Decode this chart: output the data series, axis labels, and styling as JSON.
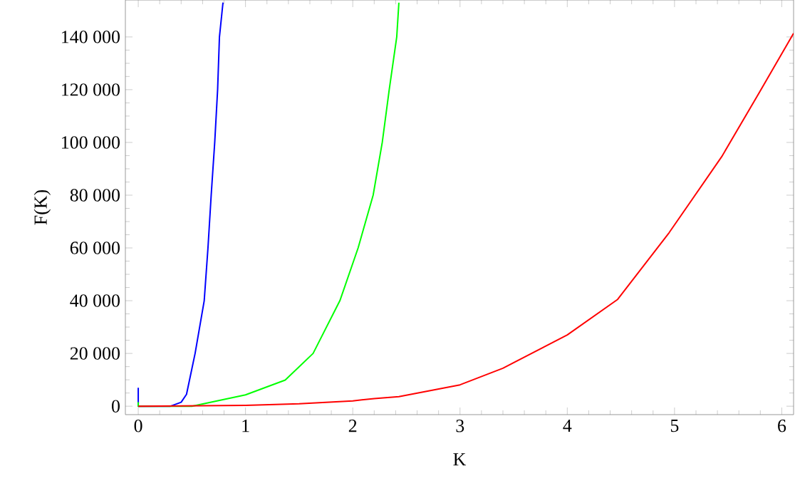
{
  "chart_data": {
    "type": "line",
    "xlabel": "K",
    "ylabel": "F(K)",
    "xlim": [
      -0.12,
      6.11
    ],
    "ylim": [
      -3200,
      154000
    ],
    "xticks": [
      0,
      1,
      2,
      3,
      4,
      5,
      6
    ],
    "yticks": [
      0,
      {
        "value": 20000,
        "label": "20 000"
      },
      {
        "value": 40000,
        "label": "40 000"
      },
      {
        "value": 60000,
        "label": "60 000"
      },
      {
        "value": 80000,
        "label": "80 000"
      },
      {
        "value": 100000,
        "label": "100 000"
      },
      {
        "value": 120000,
        "label": "120 000"
      },
      {
        "value": 140000,
        "label": "140 000"
      }
    ],
    "marker": "none",
    "line_style": "solid",
    "series": [
      {
        "color": "#0000ff",
        "x": [
          0,
          0,
          0.3,
          0.4,
          0.45,
          0.53,
          0.615,
          0.65,
          0.68,
          0.713,
          0.74,
          0.757,
          0.79
        ],
        "values": [
          7000,
          0,
          0,
          1500,
          4500,
          20000,
          40000,
          60000,
          80000,
          100000,
          120000,
          140000,
          153000
        ]
      },
      {
        "color": "#00ff00",
        "x": [
          0,
          0,
          0.5,
          1,
          1.37,
          1.63,
          1.88,
          2.05,
          2.19,
          2.275,
          2.34,
          2.41,
          2.43
        ],
        "values": [
          1500,
          0,
          0,
          4300,
          9900,
          20000,
          40000,
          60000,
          80000,
          100000,
          120000,
          140000,
          153000
        ]
      },
      {
        "color": "#ff0000",
        "x": [
          0,
          1,
          1.5,
          2,
          2.2,
          2.43,
          3.0,
          3.4,
          4.0,
          4.47,
          4.95,
          5.44,
          5.79,
          6.11
        ],
        "values": [
          0,
          300,
          900,
          2000,
          2900,
          3600,
          8100,
          14400,
          27000,
          40500,
          65800,
          94600,
          118900,
          141400
        ]
      }
    ]
  }
}
